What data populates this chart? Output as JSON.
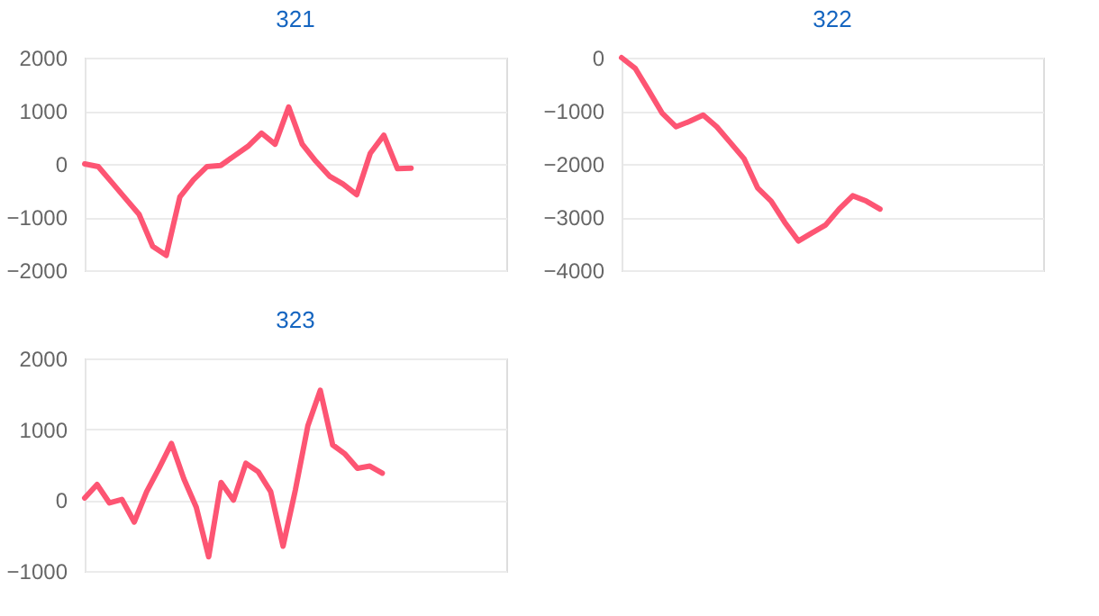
{
  "chart_data": [
    {
      "type": "line",
      "title": "321",
      "categories": [
        null,
        null,
        null,
        null,
        null,
        null,
        null,
        null,
        null,
        null,
        null,
        null,
        null,
        null,
        null,
        null,
        null,
        null,
        null,
        null,
        null,
        null,
        null,
        null,
        null,
        null,
        null,
        null,
        null,
        null,
        null,
        null
      ],
      "series": [
        {
          "color": "#fd5573",
          "values": [
            0,
            -50,
            -350,
            -650,
            -950,
            -1550,
            -1720,
            -620,
            -300,
            -50,
            -30,
            150,
            330,
            580,
            370,
            1070,
            370,
            50,
            -230,
            -380,
            -580,
            200,
            540,
            -90,
            -80,
            null,
            null,
            null,
            null,
            null,
            null,
            null
          ]
        }
      ],
      "ylim": [
        -2000,
        2000
      ],
      "yticks": [
        -2000,
        -1000,
        0,
        1000,
        2000
      ],
      "grid": "y",
      "tick_labels": "y",
      "marker": "none",
      "line_style": "solid"
    },
    {
      "type": "line",
      "title": "322",
      "categories": [
        null,
        null,
        null,
        null,
        null,
        null,
        null,
        null,
        null,
        null,
        null,
        null,
        null,
        null,
        null,
        null,
        null,
        null,
        null,
        null,
        null,
        null,
        null,
        null,
        null,
        null,
        null,
        null,
        null,
        null,
        null,
        null
      ],
      "series": [
        {
          "color": "#fd5573",
          "values": [
            0,
            -200,
            -620,
            -1050,
            -1300,
            -1200,
            -1080,
            -1300,
            -1600,
            -1900,
            -2450,
            -2700,
            -3100,
            -3450,
            -3300,
            -3150,
            -2850,
            -2600,
            -2700,
            -2850,
            null,
            null,
            null,
            null,
            null,
            null,
            null,
            null,
            null,
            null,
            null,
            null
          ]
        }
      ],
      "ylim": [
        -4000,
        0
      ],
      "yticks": [
        -4000,
        -3000,
        -2000,
        -1000,
        0
      ],
      "grid": "y",
      "tick_labels": "y",
      "marker": "none",
      "line_style": "solid"
    },
    {
      "type": "line",
      "title": "323",
      "categories": [
        null,
        null,
        null,
        null,
        null,
        null,
        null,
        null,
        null,
        null,
        null,
        null,
        null,
        null,
        null,
        null,
        null,
        null,
        null,
        null,
        null,
        null,
        null,
        null,
        null,
        null,
        null,
        null,
        null,
        null,
        null,
        null,
        null,
        null,
        null
      ],
      "series": [
        {
          "color": "#fd5573",
          "values": [
            30,
            220,
            -40,
            10,
            -310,
            120,
            450,
            800,
            300,
            -100,
            -800,
            250,
            0,
            520,
            400,
            120,
            -650,
            150,
            1050,
            1550,
            780,
            650,
            450,
            480,
            380,
            null,
            null,
            null,
            null,
            null,
            null,
            null,
            null,
            null,
            null
          ]
        }
      ],
      "ylim": [
        -1000,
        2000
      ],
      "yticks": [
        -1000,
        0,
        1000,
        2000
      ],
      "grid": "y",
      "tick_labels": "y",
      "marker": "none",
      "line_style": "solid"
    }
  ]
}
